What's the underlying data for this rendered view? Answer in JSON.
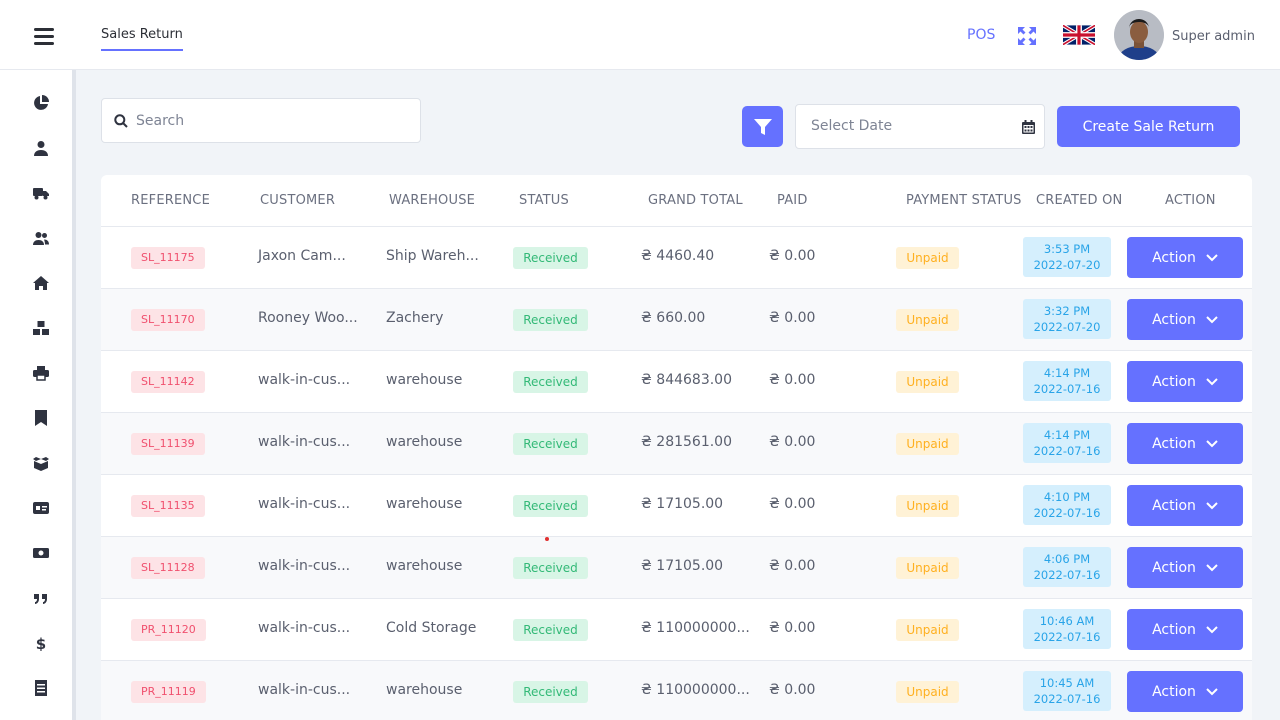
{
  "header": {
    "active_tab": "Sales Return",
    "pos_label": "POS",
    "user_name": "Super admin"
  },
  "sidebar": {
    "items": [
      "dashboard-icon",
      "user-icon",
      "truck-icon",
      "users-icon",
      "home-icon",
      "boxes-icon",
      "printer-icon",
      "bookmark-icon",
      "box-open-icon",
      "id-card-icon",
      "money-icon",
      "quote-icon",
      "dollar-icon",
      "file-icon"
    ]
  },
  "toolbar": {
    "search_placeholder": "Search",
    "date_placeholder": "Select Date",
    "create_label": "Create Sale Return"
  },
  "table": {
    "headers": [
      "REFERENCE",
      "CUSTOMER",
      "WAREHOUSE",
      "STATUS",
      "GRAND TOTAL",
      "PAID",
      "PAYMENT STATUS",
      "CREATED ON",
      "ACTION"
    ],
    "rows": [
      {
        "ref": "SL_11175",
        "customer": "Jaxon Cam...",
        "warehouse": "Ship Wareh...",
        "status": "Received",
        "total": "₴ 4460.40",
        "paid": "₴ 0.00",
        "payment": "Unpaid",
        "time": "3:53 PM",
        "date": "2022-07-20",
        "action": "Action"
      },
      {
        "ref": "SL_11170",
        "customer": "Rooney Woo...",
        "warehouse": "Zachery",
        "status": "Received",
        "total": "₴ 660.00",
        "paid": "₴ 0.00",
        "payment": "Unpaid",
        "time": "3:32 PM",
        "date": "2022-07-20",
        "action": "Action"
      },
      {
        "ref": "SL_11142",
        "customer": "walk-in-cus...",
        "warehouse": "warehouse",
        "status": "Received",
        "total": "₴ 844683.00",
        "paid": "₴ 0.00",
        "payment": "Unpaid",
        "time": "4:14 PM",
        "date": "2022-07-16",
        "action": "Action"
      },
      {
        "ref": "SL_11139",
        "customer": "walk-in-cus...",
        "warehouse": "warehouse",
        "status": "Received",
        "total": "₴ 281561.00",
        "paid": "₴ 0.00",
        "payment": "Unpaid",
        "time": "4:14 PM",
        "date": "2022-07-16",
        "action": "Action"
      },
      {
        "ref": "SL_11135",
        "customer": "walk-in-cus...",
        "warehouse": "warehouse",
        "status": "Received",
        "total": "₴ 17105.00",
        "paid": "₴ 0.00",
        "payment": "Unpaid",
        "time": "4:10 PM",
        "date": "2022-07-16",
        "action": "Action"
      },
      {
        "ref": "SL_11128",
        "customer": "walk-in-cus...",
        "warehouse": "warehouse",
        "status": "Received",
        "total": "₴ 17105.00",
        "paid": "₴ 0.00",
        "payment": "Unpaid",
        "time": "4:06 PM",
        "date": "2022-07-16",
        "action": "Action"
      },
      {
        "ref": "PR_11120",
        "customer": "walk-in-cus...",
        "warehouse": "Cold Storage",
        "status": "Received",
        "total": "₴ 110000000...",
        "paid": "₴ 0.00",
        "payment": "Unpaid",
        "time": "10:46 AM",
        "date": "2022-07-16",
        "action": "Action"
      },
      {
        "ref": "PR_11119",
        "customer": "walk-in-cus...",
        "warehouse": "warehouse",
        "status": "Received",
        "total": "₴ 110000000...",
        "paid": "₴ 0.00",
        "payment": "Unpaid",
        "time": "10:45 AM",
        "date": "2022-07-16",
        "action": "Action"
      }
    ]
  },
  "colors": {
    "accent": "#6571ff",
    "received": "#33b977",
    "unpaid": "#ffb020",
    "reference": "#f0506e",
    "created": "#29a4e8"
  }
}
